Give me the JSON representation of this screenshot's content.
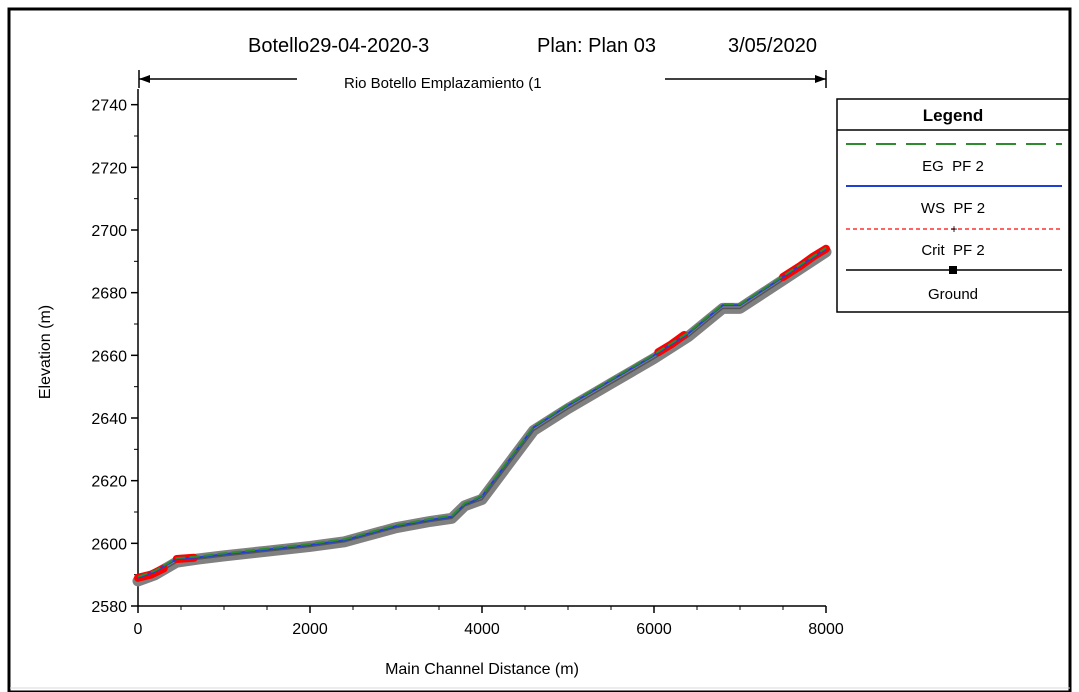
{
  "header": {
    "title_left": "Botello29-04-2020-3",
    "title_plan": "Plan: Plan 03",
    "title_date": "3/05/2020",
    "reach_label": "Rio Botello Emplazamiento (1"
  },
  "legend": {
    "title": "Legend",
    "entries": [
      "EG  PF 2",
      "WS  PF 2",
      "Crit  PF 2",
      "Ground"
    ]
  },
  "colors": {
    "eg": "#2e8b2e",
    "ws": "#1f3fd6",
    "crit": "#ff3030",
    "ground": "#808080",
    "crit_marker": "#ff0000"
  },
  "chart_data": {
    "type": "line",
    "xlabel": "Main Channel Distance (m)",
    "ylabel": "Elevation (m)",
    "xlim": [
      0,
      8000
    ],
    "ylim": [
      2580,
      2745
    ],
    "xticks": [
      0,
      2000,
      4000,
      6000,
      8000
    ],
    "yticks": [
      2580,
      2600,
      2620,
      2640,
      2660,
      2680,
      2700,
      2720,
      2740
    ],
    "grid": false,
    "legend_position": "right",
    "series": [
      {
        "name": "Ground",
        "x": [
          0,
          200,
          450,
          700,
          1000,
          1500,
          2000,
          2400,
          2600,
          3000,
          3400,
          3650,
          3800,
          3900,
          4000,
          4300,
          4600,
          5000,
          5500,
          6000,
          6400,
          6800,
          7000,
          7500,
          8000
        ],
        "y": [
          2588,
          2590,
          2594,
          2595,
          2596,
          2597.5,
          2599,
          2600.5,
          2602,
          2605,
          2607,
          2608,
          2612,
          2613,
          2614,
          2625,
          2636,
          2643,
          2651,
          2659,
          2666,
          2675,
          2675,
          2684,
          2693
        ]
      },
      {
        "name": "WS  PF 2",
        "x": [
          0,
          200,
          450,
          700,
          1000,
          1500,
          2000,
          2400,
          2600,
          3000,
          3400,
          3650,
          3800,
          3900,
          4000,
          4300,
          4600,
          5000,
          5500,
          6000,
          6400,
          6800,
          7000,
          7500,
          8000
        ],
        "y": [
          2589,
          2591,
          2595,
          2595.5,
          2596.5,
          2598,
          2599.5,
          2601,
          2602.5,
          2605.5,
          2607.5,
          2608.5,
          2612.5,
          2613.5,
          2615,
          2626,
          2637,
          2644,
          2652,
          2660,
          2667,
          2676,
          2676,
          2685,
          2694
        ]
      },
      {
        "name": "EG  PF 2",
        "x": [
          0,
          200,
          450,
          700,
          1000,
          1500,
          2000,
          2400,
          2600,
          3000,
          3400,
          3650,
          3800,
          3900,
          4000,
          4300,
          4600,
          5000,
          5500,
          6000,
          6400,
          6800,
          7000,
          7500,
          8000
        ],
        "y": [
          2589.3,
          2591.3,
          2595.3,
          2595.8,
          2596.8,
          2598.3,
          2599.8,
          2601.3,
          2602.8,
          2605.8,
          2607.8,
          2608.8,
          2612.8,
          2613.8,
          2615.3,
          2626.3,
          2637.3,
          2644.3,
          2652.3,
          2660.3,
          2667.3,
          2676.3,
          2676.3,
          2685.3,
          2694.3
        ]
      },
      {
        "name": "Crit  PF 2",
        "segments": [
          {
            "x": [
              0,
              150,
              300
            ],
            "y": [
              2589,
              2590,
              2592
            ]
          },
          {
            "x": [
              450,
              550,
              650
            ],
            "y": [
              2595,
              2595.2,
              2595.4
            ]
          },
          {
            "x": [
              6050,
              6200,
              6350
            ],
            "y": [
              2661,
              2663.5,
              2666.5
            ]
          },
          {
            "x": [
              7500,
              7700,
              7850,
              8000
            ],
            "y": [
              2685,
              2688.5,
              2691.5,
              2694
            ]
          }
        ]
      }
    ]
  }
}
